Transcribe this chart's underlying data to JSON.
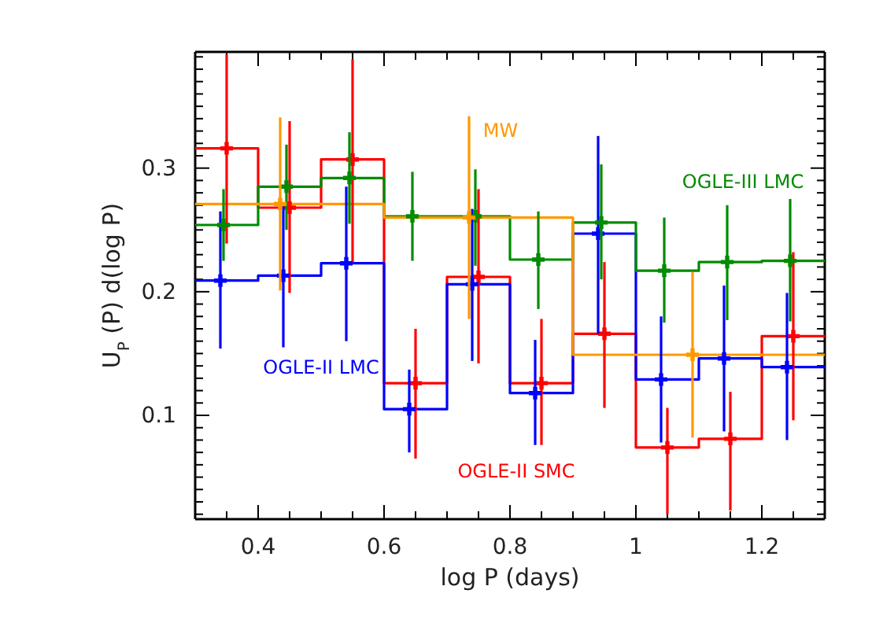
{
  "chart_data": {
    "type": "step",
    "xlabel": "log P (days)",
    "ylabel": "U$_{P}$ (P) d(log P)",
    "xlim": [
      0.3,
      1.3
    ],
    "ylim": [
      0.016,
      0.394
    ],
    "xticks": [
      0.4,
      0.6,
      0.8,
      1.0,
      1.2,
      {
        "value": 0.35,
        "label": null
      },
      {
        "value": 0.45,
        "label": null
      },
      {
        "value": 0.5,
        "label": null
      },
      {
        "value": 0.55,
        "label": null
      },
      {
        "value": 0.65,
        "label": null
      },
      {
        "value": 0.7,
        "label": null
      },
      {
        "value": 0.75,
        "label": null
      },
      {
        "value": 0.85,
        "label": null
      },
      {
        "value": 0.9,
        "label": null
      },
      {
        "value": 0.95,
        "label": null
      },
      {
        "value": 1.05,
        "label": null
      },
      {
        "value": 1.1,
        "label": null
      },
      {
        "value": 1.15,
        "label": null
      },
      {
        "value": 1.25,
        "label": null
      }
    ],
    "yticks": [
      0.1,
      0.2,
      0.3,
      {
        "value": 0.02,
        "label": null
      },
      {
        "value": 0.03,
        "label": null
      },
      {
        "value": 0.04,
        "label": null
      },
      {
        "value": 0.05,
        "label": null
      },
      {
        "value": 0.06,
        "label": null
      },
      {
        "value": 0.07,
        "label": null
      },
      {
        "value": 0.08,
        "label": null
      },
      {
        "value": 0.09,
        "label": null
      },
      {
        "value": 0.11,
        "label": null
      },
      {
        "value": 0.12,
        "label": null
      },
      {
        "value": 0.13,
        "label": null
      },
      {
        "value": 0.14,
        "label": null
      },
      {
        "value": 0.15,
        "label": null
      },
      {
        "value": 0.16,
        "label": null
      },
      {
        "value": 0.17,
        "label": null
      },
      {
        "value": 0.18,
        "label": null
      },
      {
        "value": 0.19,
        "label": null
      },
      {
        "value": 0.21,
        "label": null
      },
      {
        "value": 0.22,
        "label": null
      },
      {
        "value": 0.23,
        "label": null
      },
      {
        "value": 0.24,
        "label": null
      },
      {
        "value": 0.25,
        "label": null
      },
      {
        "value": 0.26,
        "label": null
      },
      {
        "value": 0.27,
        "label": null
      },
      {
        "value": 0.28,
        "label": null
      },
      {
        "value": 0.29,
        "label": null
      },
      {
        "value": 0.31,
        "label": null
      },
      {
        "value": 0.32,
        "label": null
      },
      {
        "value": 0.33,
        "label": null
      },
      {
        "value": 0.34,
        "label": null
      },
      {
        "value": 0.35,
        "label": null
      },
      {
        "value": 0.36,
        "label": null
      },
      {
        "value": 0.37,
        "label": null
      },
      {
        "value": 0.38,
        "label": null
      },
      {
        "value": 0.39,
        "label": null
      }
    ],
    "series": [
      {
        "name": "OGLE-II SMC",
        "color": "#ff0000",
        "x": [
          0.3,
          0.4,
          0.5,
          0.6,
          0.7,
          0.8,
          0.9,
          1.0,
          1.1,
          1.2,
          1.3
        ],
        "values": [
          0.316,
          0.268,
          0.307,
          0.126,
          0.212,
          0.126,
          0.166,
          0.074,
          0.081,
          0.164,
          0.164
        ]
      },
      {
        "name": "OGLE-II LMC",
        "color": "#0000ff",
        "x": [
          0.3,
          0.4,
          0.5,
          0.6,
          0.7,
          0.8,
          0.9,
          1.0,
          1.1,
          1.2,
          1.3
        ],
        "values": [
          0.209,
          0.213,
          0.223,
          0.105,
          0.206,
          0.118,
          0.247,
          0.129,
          0.146,
          0.139,
          0.139
        ]
      },
      {
        "name": "OGLE-III LMC",
        "color": "#008b00",
        "x": [
          0.3,
          0.4,
          0.5,
          0.6,
          0.7,
          0.8,
          0.9,
          1.0,
          1.1,
          1.2,
          1.3
        ],
        "values": [
          0.254,
          0.285,
          0.292,
          0.261,
          0.261,
          0.226,
          0.256,
          0.217,
          0.224,
          0.225,
          0.225
        ]
      },
      {
        "name": "MW",
        "color": "#ff9900",
        "x": [
          0.3,
          0.6,
          0.9,
          1.3
        ],
        "values": [
          0.271,
          0.26,
          0.149,
          0.149
        ]
      },
      {
        "type": "scatter",
        "marker": "cross",
        "color": "#ff0000",
        "x": [
          0.35,
          0.45,
          0.55,
          0.65,
          0.75,
          0.85,
          0.95,
          1.05,
          1.15,
          1.25
        ],
        "values": [
          0.316,
          0.268,
          0.307,
          0.126,
          0.212,
          0.126,
          0.166,
          0.074,
          0.081,
          0.164
        ],
        "errors": [
          [
            0.239,
            0.392
          ],
          [
            0.199,
            0.338
          ],
          [
            0.224,
            0.388
          ],
          [
            0.065,
            0.17
          ],
          [
            0.142,
            0.283
          ],
          [
            0.076,
            0.178
          ],
          [
            0.106,
            0.224
          ],
          [
            0.02,
            0.106
          ],
          [
            0.023,
            0.119
          ],
          [
            0.096,
            0.232
          ]
        ]
      },
      {
        "type": "scatter",
        "marker": "cross",
        "color": "#0000ff",
        "x": [
          0.34,
          0.44,
          0.54,
          0.64,
          0.74,
          0.84,
          0.94,
          1.04,
          1.14,
          1.24
        ],
        "values": [
          0.209,
          0.213,
          0.223,
          0.105,
          0.206,
          0.118,
          0.247,
          0.129,
          0.146,
          0.139
        ],
        "errors": [
          [
            0.154,
            0.265
          ],
          [
            0.155,
            0.269
          ],
          [
            0.16,
            0.285
          ],
          [
            0.07,
            0.137
          ],
          [
            0.144,
            0.267
          ],
          [
            0.076,
            0.161
          ],
          [
            0.166,
            0.326
          ],
          [
            0.078,
            0.18
          ],
          [
            0.087,
            0.205
          ],
          [
            0.08,
            0.199
          ]
        ]
      },
      {
        "type": "scatter",
        "marker": "cross",
        "color": "#008b00",
        "x": [
          0.345,
          0.445,
          0.545,
          0.645,
          0.745,
          0.845,
          0.945,
          1.045,
          1.145,
          1.245
        ],
        "values": [
          0.254,
          0.285,
          0.292,
          0.261,
          0.261,
          0.226,
          0.256,
          0.217,
          0.224,
          0.225
        ],
        "errors": [
          [
            0.225,
            0.283
          ],
          [
            0.25,
            0.319
          ],
          [
            0.255,
            0.329
          ],
          [
            0.225,
            0.297
          ],
          [
            0.221,
            0.299
          ],
          [
            0.186,
            0.265
          ],
          [
            0.21,
            0.303
          ],
          [
            0.175,
            0.26
          ],
          [
            0.177,
            0.27
          ],
          [
            0.176,
            0.275
          ]
        ]
      },
      {
        "type": "scatter",
        "marker": "cross",
        "color": "#ff9900",
        "x": [
          0.435,
          0.735,
          1.09
        ],
        "values": [
          0.271,
          0.26,
          0.149
        ],
        "errors": [
          [
            0.201,
            0.341
          ],
          [
            0.178,
            0.342
          ],
          [
            0.082,
            0.216
          ]
        ]
      }
    ]
  }
}
